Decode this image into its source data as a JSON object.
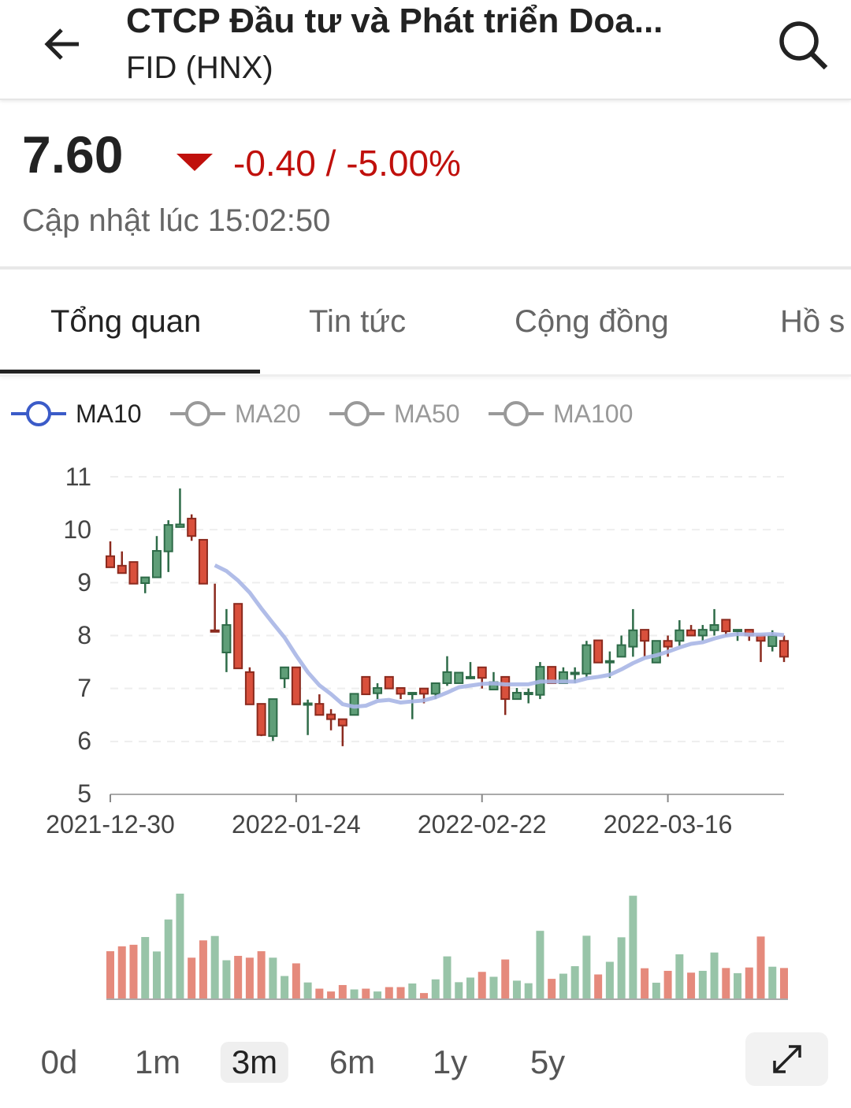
{
  "header": {
    "title": "CTCP Đầu tư và Phát triển Doa...",
    "subtitle": "FID (HNX)",
    "back_icon": "arrow-left-icon",
    "search_icon": "search-icon"
  },
  "quote": {
    "price": "7.60",
    "change": "-0.40 / -5.00%",
    "direction_icon": "triangle-down-icon",
    "updated": "Cập nhật lúc 15:02:50",
    "down_color": "#c0100c"
  },
  "tabs": [
    {
      "label": "Tổng quan",
      "active": true
    },
    {
      "label": "Tin tức"
    },
    {
      "label": "Cộng đồng"
    },
    {
      "label": "Hồ s"
    }
  ],
  "legend": [
    {
      "label": "MA10",
      "active": true,
      "color": "#3b5bc8"
    },
    {
      "label": "MA20",
      "color": "#999999"
    },
    {
      "label": "MA50",
      "color": "#999999"
    },
    {
      "label": "MA100",
      "color": "#999999"
    }
  ],
  "timeframes": [
    {
      "label": "0d"
    },
    {
      "label": "1m"
    },
    {
      "label": "3m",
      "active": true
    },
    {
      "label": "6m"
    },
    {
      "label": "1y"
    },
    {
      "label": "5y"
    }
  ],
  "expand_icon": "expand-diagonal-icon",
  "chart_data": {
    "type": "candlestick",
    "ylim": [
      5,
      11
    ],
    "yticks": [
      "11",
      "10",
      "9",
      "8",
      "7",
      "6",
      "5"
    ],
    "xticks": [
      {
        "label": "2021-12-30",
        "index": 0
      },
      {
        "label": "2022-01-24",
        "index": 16
      },
      {
        "label": "2022-02-22",
        "index": 32
      },
      {
        "label": "2022-03-16",
        "index": 48
      }
    ],
    "grid": true,
    "colors": {
      "up": "#5f9e78",
      "down": "#d9503c",
      "ma10": "#a9b6e6",
      "vol_up": "#98c4a8",
      "vol_down": "#e58a7c"
    },
    "ohlc": [
      [
        9.5,
        9.78,
        9.29,
        9.29
      ],
      [
        9.32,
        9.59,
        9.18,
        9.18
      ],
      [
        9.39,
        9.39,
        8.98,
        8.98
      ],
      [
        8.99,
        9.1,
        8.8,
        9.1
      ],
      [
        9.1,
        9.88,
        9.1,
        9.6
      ],
      [
        9.59,
        10.18,
        9.2,
        10.09
      ],
      [
        10.05,
        10.78,
        10.05,
        10.1
      ],
      [
        10.21,
        10.29,
        9.79,
        9.88
      ],
      [
        9.81,
        9.81,
        8.98,
        8.98
      ],
      [
        8.1,
        8.98,
        8.08,
        8.08
      ],
      [
        7.68,
        8.5,
        7.31,
        8.2
      ],
      [
        8.6,
        8.6,
        7.38,
        7.38
      ],
      [
        7.31,
        7.4,
        6.7,
        6.7
      ],
      [
        6.71,
        6.71,
        6.1,
        6.12
      ],
      [
        6.1,
        6.8,
        6.01,
        6.8
      ],
      [
        7.19,
        7.4,
        7.01,
        7.4
      ],
      [
        7.4,
        7.4,
        6.7,
        6.7
      ],
      [
        6.71,
        6.79,
        6.12,
        6.72
      ],
      [
        6.71,
        6.89,
        6.5,
        6.5
      ],
      [
        6.51,
        6.61,
        6.21,
        6.42
      ],
      [
        6.42,
        6.42,
        5.91,
        6.3
      ],
      [
        6.5,
        6.9,
        6.5,
        6.9
      ],
      [
        7.22,
        7.22,
        6.89,
        6.89
      ],
      [
        6.91,
        7.1,
        6.8,
        7.01
      ],
      [
        7.22,
        7.22,
        7.0,
        7.0
      ],
      [
        7.01,
        7.01,
        6.8,
        6.9
      ],
      [
        6.9,
        6.92,
        6.42,
        6.92
      ],
      [
        7.0,
        7.0,
        6.72,
        6.9
      ],
      [
        6.9,
        7.1,
        6.8,
        7.1
      ],
      [
        7.1,
        7.61,
        7.05,
        7.31
      ],
      [
        7.1,
        7.3,
        7.1,
        7.3
      ],
      [
        7.2,
        7.5,
        7.2,
        7.22
      ],
      [
        7.4,
        7.4,
        7.0,
        7.2
      ],
      [
        6.98,
        7.31,
        6.98,
        7.12
      ],
      [
        7.22,
        7.22,
        6.5,
        6.8
      ],
      [
        6.8,
        7.01,
        6.8,
        6.92
      ],
      [
        6.9,
        7.0,
        6.72,
        6.92
      ],
      [
        6.88,
        7.5,
        6.8,
        7.41
      ],
      [
        7.41,
        7.41,
        7.1,
        7.1
      ],
      [
        7.1,
        7.4,
        7.1,
        7.31
      ],
      [
        7.28,
        7.4,
        7.1,
        7.3
      ],
      [
        7.28,
        7.9,
        7.2,
        7.82
      ],
      [
        7.91,
        7.91,
        7.49,
        7.49
      ],
      [
        7.5,
        7.7,
        7.2,
        7.52
      ],
      [
        7.6,
        8.0,
        7.6,
        7.82
      ],
      [
        7.79,
        8.5,
        7.6,
        8.1
      ],
      [
        8.11,
        8.11,
        7.6,
        7.9
      ],
      [
        7.49,
        7.9,
        7.49,
        7.9
      ],
      [
        7.9,
        8.0,
        7.6,
        7.79
      ],
      [
        7.9,
        8.29,
        7.8,
        8.1
      ],
      [
        8.1,
        8.2,
        8.0,
        8.0
      ],
      [
        8.0,
        8.2,
        7.9,
        8.11
      ],
      [
        8.1,
        8.5,
        8.0,
        8.2
      ],
      [
        8.3,
        8.3,
        8.0,
        8.08
      ],
      [
        8.1,
        8.11,
        7.9,
        8.11
      ],
      [
        8.11,
        8.11,
        7.9,
        8.0
      ],
      [
        8.0,
        8.0,
        7.5,
        7.9
      ],
      [
        7.8,
        8.1,
        7.7,
        8.0
      ],
      [
        7.9,
        8.0,
        7.5,
        7.6
      ]
    ],
    "volume": [
      183,
      202,
      208,
      238,
      182,
      306,
      406,
      158,
      225,
      242,
      148,
      165,
      158,
      183,
      158,
      87,
      136,
      62,
      38,
      27,
      52,
      35,
      38,
      27,
      44,
      44,
      58,
      21,
      74,
      163,
      63,
      81,
      103,
      84,
      151,
      69,
      59,
      262,
      76,
      96,
      125,
      243,
      93,
      142,
      237,
      398,
      117,
      61,
      107,
      171,
      100,
      107,
      178,
      118,
      98,
      120,
      240,
      123,
      118
    ],
    "volume_up": [
      0,
      0,
      0,
      1,
      1,
      1,
      1,
      0,
      0,
      1,
      1,
      0,
      0,
      0,
      1,
      1,
      0,
      1,
      0,
      0,
      0,
      1,
      0,
      1,
      0,
      0,
      1,
      0,
      1,
      1,
      1,
      1,
      0,
      1,
      0,
      1,
      1,
      1,
      0,
      1,
      1,
      1,
      0,
      1,
      1,
      1,
      0,
      1,
      0,
      1,
      0,
      1,
      1,
      0,
      1,
      0,
      0,
      1,
      0
    ]
  }
}
